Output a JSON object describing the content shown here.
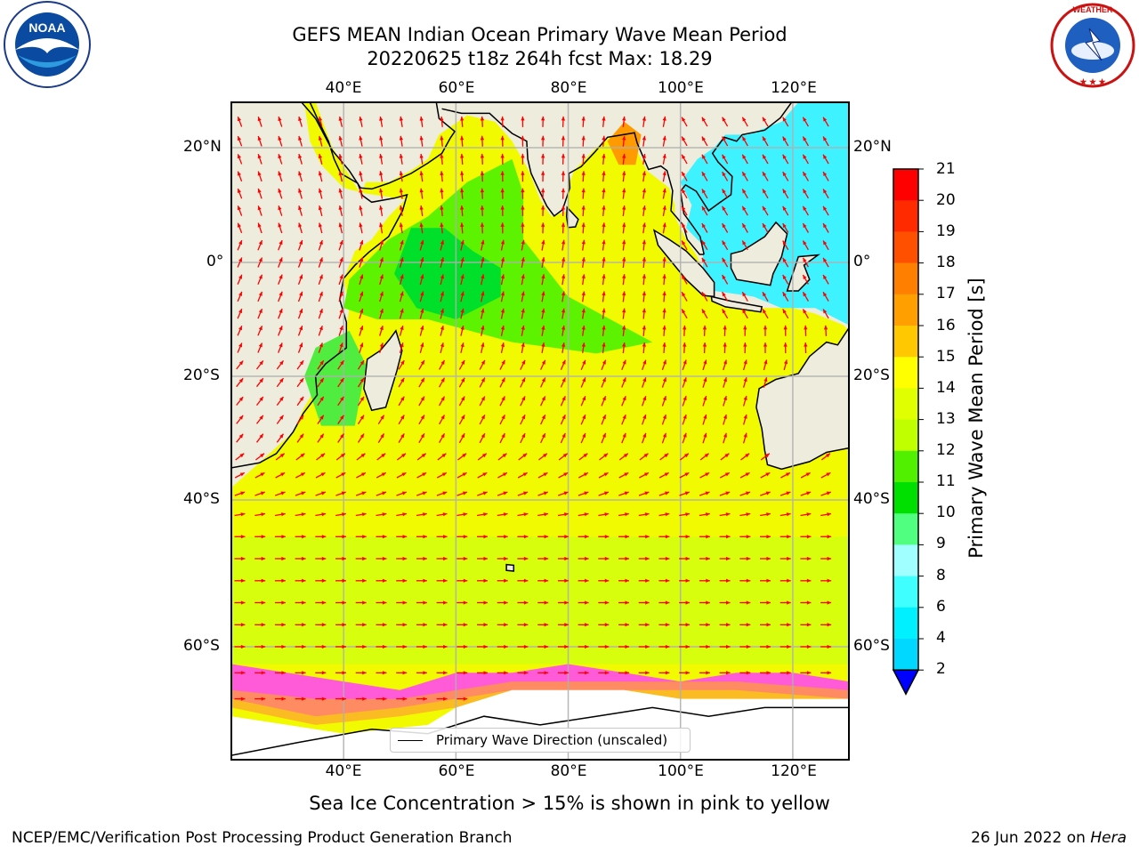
{
  "title": {
    "line1": "GEFS MEAN Indian Ocean Primary Wave Mean Period",
    "line2": "20220625 t18z 264h fcst   Max: 18.29"
  },
  "map": {
    "lon_ticks": [
      "40°E",
      "60°E",
      "80°E",
      "100°E",
      "120°E"
    ],
    "lat_ticks": [
      "20°N",
      "0°",
      "20°S",
      "40°S",
      "60°S"
    ],
    "lon_range": [
      20,
      130
    ],
    "lat_range": [
      -73,
      27
    ],
    "legend": "Primary Wave Direction (unscaled)",
    "arrow_color": "#ff0000",
    "land_color": "#eeecdc"
  },
  "colorbar": {
    "label": "Primary Wave Mean Period [s]",
    "ticks": [
      "21",
      "20",
      "19",
      "18",
      "17",
      "16",
      "15",
      "14",
      "13",
      "12",
      "11",
      "10",
      "9",
      "8",
      "6",
      "4",
      "2"
    ],
    "levels": [
      2,
      4,
      6,
      8,
      9,
      10,
      11,
      12,
      13,
      14,
      15,
      16,
      17,
      18,
      19,
      20,
      21
    ],
    "colors": [
      "#0050ff",
      "#00d8ff",
      "#00f0ff",
      "#40ffff",
      "#a0ffff",
      "#50ff80",
      "#00e000",
      "#50f000",
      "#c0ff00",
      "#e0ff00",
      "#ffff00",
      "#ffc800",
      "#ffa000",
      "#ff8000",
      "#ff5000",
      "#ff2a00",
      "#ff0000"
    ],
    "extend_color": "#0000ff"
  },
  "notes": {
    "sea_ice": "Sea Ice Concentration > 15% is shown in pink to yellow"
  },
  "footer": {
    "left": "NCEP/EMC/Verification Post Processing Product Generation Branch",
    "right_date": "26 Jun 2022 on ",
    "right_machine": "Hera"
  },
  "logos": {
    "noaa": "NOAA",
    "nws": "NATIONAL WEATHER SERVICE"
  }
}
